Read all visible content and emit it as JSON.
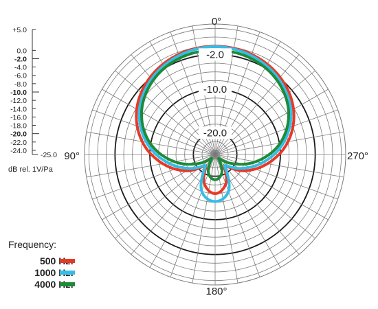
{
  "chart_data": {
    "type": "polar",
    "angle_labels": {
      "top": "0°",
      "right": "270°",
      "bottom": "180°",
      "left": "90°"
    },
    "ring_labels": [
      "-2.0",
      "-10.0",
      "-20.0"
    ],
    "db_scale": {
      "labels": [
        "+5.0",
        "0.0",
        "-2.0",
        "-4.0",
        "-6.0",
        "-8.0",
        "-10.0",
        "-12.0",
        "-14.0",
        "-16.0",
        "-18.0",
        "-20.0",
        "-22.0",
        "-24.0",
        "-25.0"
      ],
      "bold": [
        "-2.0",
        "-10.0",
        "-20.0"
      ],
      "unit": "dB rel. 1V/Pa"
    },
    "r_range": [
      -25,
      5
    ],
    "angle_direction": "counterclockwise",
    "angle_step_deg": 10,
    "angles_deg": [
      0,
      20,
      40,
      60,
      80,
      100,
      120,
      140,
      160,
      180,
      200,
      220,
      240,
      260,
      280,
      300,
      320,
      340
    ],
    "series": [
      {
        "name": "500 Hz",
        "color": "#e63a26",
        "values": [
          -0.1,
          -0.5,
          -1.8,
          -4.2,
          -8.0,
          -12.8,
          -17.5,
          -21.6,
          -17.8,
          -16.0,
          -17.8,
          -21.6,
          -17.5,
          -12.8,
          -8.0,
          -4.2,
          -1.8,
          -0.5
        ]
      },
      {
        "name": "1000 Hz",
        "color": "#36bde6",
        "values": [
          -0.2,
          -0.8,
          -2.3,
          -4.9,
          -9.0,
          -14.0,
          -18.6,
          -21.5,
          -16.0,
          -14.2,
          -16.0,
          -21.5,
          -18.6,
          -14.0,
          -9.0,
          -4.9,
          -2.3,
          -0.8
        ]
      },
      {
        "name": "4000 Hz",
        "color": "#1e8a3a",
        "values": [
          -1.0,
          -1.4,
          -2.8,
          -5.5,
          -9.8,
          -15.5,
          -21.0,
          -23.8,
          -20.5,
          -19.2,
          -20.5,
          -23.8,
          -21.0,
          -15.5,
          -9.8,
          -5.5,
          -2.8,
          -1.4
        ]
      }
    ]
  },
  "legend": {
    "title": "Frequency:",
    "items": [
      {
        "label": "500 Hz:",
        "color": "#e63a26"
      },
      {
        "label": "1000 Hz:",
        "color": "#36bde6"
      },
      {
        "label": "4000 Hz:",
        "color": "#1e8a3a"
      }
    ]
  }
}
